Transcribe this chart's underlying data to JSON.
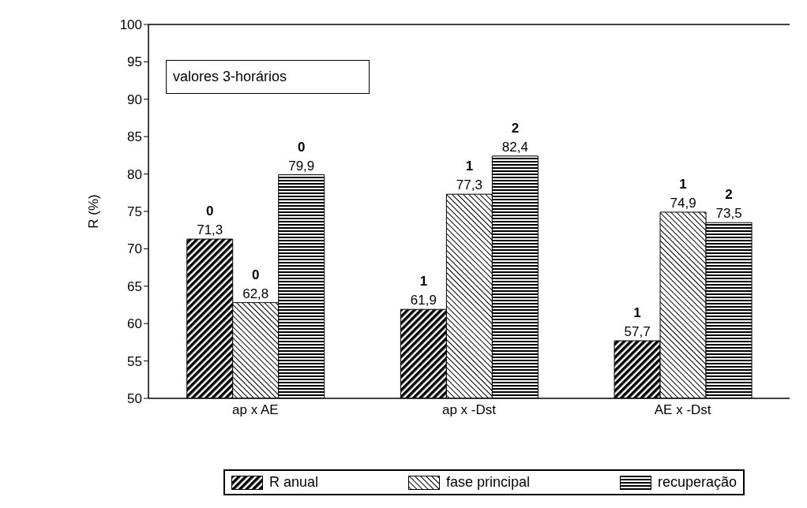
{
  "chart_data": {
    "type": "bar",
    "ylabel": "R (%)",
    "categories": [
      "ap x AE",
      "ap x -Dst",
      "AE x -Dst"
    ],
    "series": [
      {
        "name": "R anual",
        "color": "#000000",
        "values": [
          71.3,
          61.9,
          57.7
        ],
        "value_labels": [
          "71,3",
          "61,9",
          "57,7"
        ]
      },
      {
        "name": "fase principal",
        "color": "#000000",
        "values": [
          62.8,
          77.3,
          74.9
        ],
        "value_labels": [
          "62,8",
          "77,3",
          "74,9"
        ]
      },
      {
        "name": "recuperação",
        "color": "#000000",
        "values": [
          79.9,
          82.4,
          73.5
        ],
        "value_labels": [
          "79,9",
          "82,4",
          "73,5"
        ]
      }
    ],
    "ylim": [
      50,
      100
    ],
    "yticks": [
      50,
      55,
      60,
      65,
      70,
      75,
      80,
      85,
      90,
      95,
      100
    ],
    "grid": false,
    "legend": "bottom",
    "annotations": [
      "valores 3-horários",
      "0",
      "1",
      "1",
      "0",
      "1",
      "1",
      "0",
      "2",
      "2"
    ]
  }
}
